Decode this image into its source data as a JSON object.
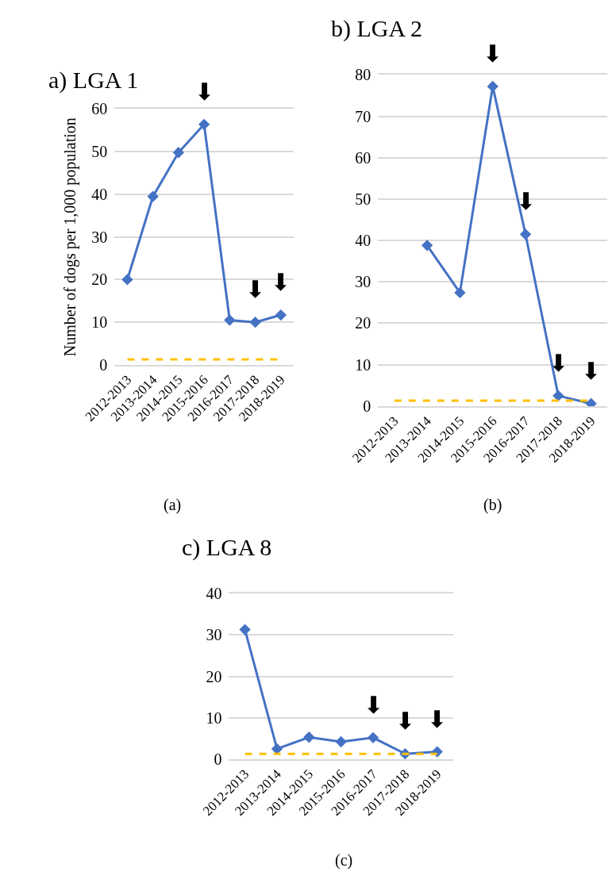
{
  "chart_data": [
    {
      "type": "line",
      "title": "a) LGA 1",
      "ylabel": "Number of dogs per 1,000 population",
      "categories": [
        "2012-2013",
        "2013-2014",
        "2014-2015",
        "2015-2016",
        "2016-2017",
        "2017-2018",
        "2018-2019"
      ],
      "series": [
        {
          "color": "#4472c4",
          "values": [
            20,
            39.5,
            49.8,
            56.4,
            10.5,
            10,
            11.7
          ]
        }
      ],
      "marker": "diamond",
      "line_style": "solid",
      "grid": "y",
      "ylim": [
        0,
        60
      ],
      "yticks": [
        0,
        10,
        20,
        30,
        40,
        50,
        60
      ],
      "ref_lines": [
        {
          "axis": "y",
          "value": 1.3,
          "color": "#ffc000",
          "line_style": "dashed"
        }
      ],
      "annotations": [
        {
          "text": "⬇",
          "x": "2015-2016",
          "y": 56.4
        },
        {
          "text": "⬇",
          "x": "2017-2018",
          "y": 10
        },
        {
          "text": "⬇",
          "x": "2018-2019",
          "y": 11.7
        },
        "(a)"
      ]
    },
    {
      "type": "line",
      "title": "b) LGA 2",
      "categories": [
        "2012-2013",
        "2013-2014",
        "2014-2015",
        "2015-2016",
        "2016-2017",
        "2017-2018",
        "2018-2019"
      ],
      "series": [
        {
          "color": "#4472c4",
          "values": [
            null,
            38.8,
            27.4,
            77.2,
            41.5,
            2.5,
            0.6
          ]
        }
      ],
      "marker": "diamond",
      "line_style": "solid",
      "grid": "y",
      "ylim": [
        0,
        80
      ],
      "yticks": [
        0,
        10,
        20,
        30,
        40,
        50,
        60,
        70,
        80
      ],
      "ref_lines": [
        {
          "axis": "y",
          "value": 1.3,
          "color": "#ffc000",
          "line_style": "dashed"
        }
      ],
      "annotations": [
        {
          "text": "⬇",
          "x": "2015-2016",
          "y": 77.2
        },
        {
          "text": "⬇",
          "x": "2016-2017",
          "y": 41.5
        },
        {
          "text": "⬇",
          "x": "2017-2018",
          "y": 2.5
        },
        {
          "text": "⬇",
          "x": "2018-2019",
          "y": 0.6
        },
        "(b)"
      ]
    },
    {
      "type": "line",
      "title": "c) LGA 8",
      "categories": [
        "2012-2013",
        "2013-2014",
        "2014-2015",
        "2015-2016",
        "2016-2017",
        "2017-2018",
        "2018-2019"
      ],
      "series": [
        {
          "color": "#4472c4",
          "values": [
            31.3,
            2.5,
            5.3,
            4.2,
            5.2,
            1.3,
            1.8
          ]
        }
      ],
      "marker": "diamond",
      "line_style": "solid",
      "grid": "y",
      "ylim": [
        0,
        40
      ],
      "yticks": [
        0,
        10,
        20,
        30,
        40
      ],
      "ref_lines": [
        {
          "axis": "y",
          "value": 1.3,
          "color": "#ffc000",
          "line_style": "dashed"
        }
      ],
      "annotations": [
        {
          "text": "⬇",
          "x": "2016-2017",
          "y": 5.2
        },
        {
          "text": "⬇",
          "x": "2017-2018",
          "y": 1.3
        },
        {
          "text": "⬇",
          "x": "2018-2019",
          "y": 1.8
        },
        "(c)"
      ]
    }
  ]
}
